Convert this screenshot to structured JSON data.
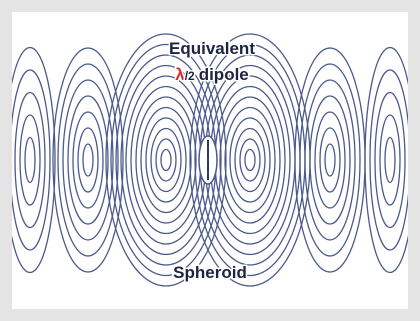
{
  "labels": {
    "line1": "Equivalent",
    "symbol": "λ",
    "fraction": "/2",
    "line2": "dipole",
    "bottom": "Spheroid"
  }
}
